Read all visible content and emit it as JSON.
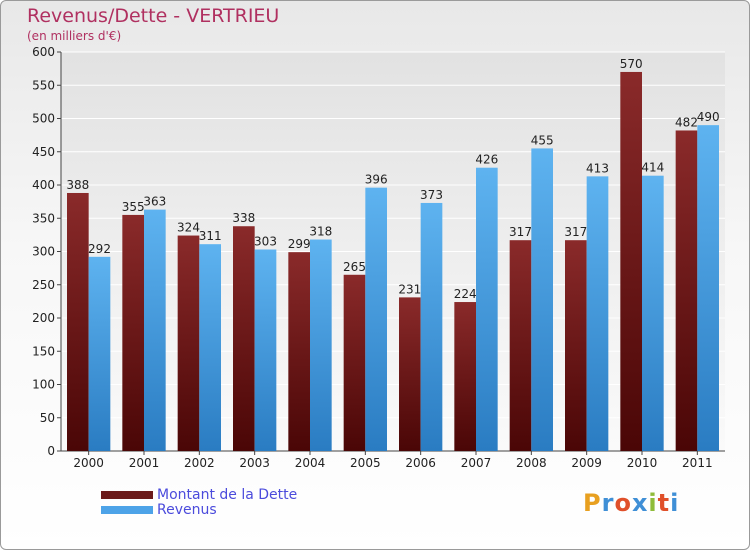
{
  "header": {
    "title": "Revenus/Dette - VERTRIEU",
    "subtitle": "(en milliers d'€)"
  },
  "legend": {
    "items": [
      {
        "label": "Montant de la Dette",
        "color": "#6b1a1a"
      },
      {
        "label": "Revenus",
        "color": "#4da3e8"
      }
    ]
  },
  "logo": {
    "letters": [
      "P",
      "r",
      "o",
      "x",
      "i",
      "t",
      "i"
    ],
    "colors": [
      "#e8a020",
      "#3f8fd6",
      "#e0502a",
      "#3f8fd6",
      "#8fbc3a",
      "#e0502a",
      "#3f8fd6"
    ]
  },
  "chart_data": {
    "type": "bar",
    "categories": [
      "2000",
      "2001",
      "2002",
      "2003",
      "2004",
      "2005",
      "2006",
      "2007",
      "2008",
      "2009",
      "2010",
      "2011"
    ],
    "series": [
      {
        "name": "Montant de la Dette",
        "values": [
          388,
          355,
          324,
          338,
          299,
          265,
          231,
          224,
          317,
          317,
          570,
          482
        ],
        "color": "#7a1f1f"
      },
      {
        "name": "Revenus",
        "values": [
          292,
          363,
          311,
          303,
          318,
          396,
          373,
          426,
          455,
          413,
          414,
          490
        ],
        "color": "#4da3e8"
      }
    ],
    "ylim": [
      0,
      600
    ],
    "yticks": [
      0,
      50,
      100,
      150,
      200,
      250,
      300,
      350,
      400,
      450,
      500,
      550,
      600
    ],
    "grid": true,
    "legend_position": "bottom-left"
  }
}
